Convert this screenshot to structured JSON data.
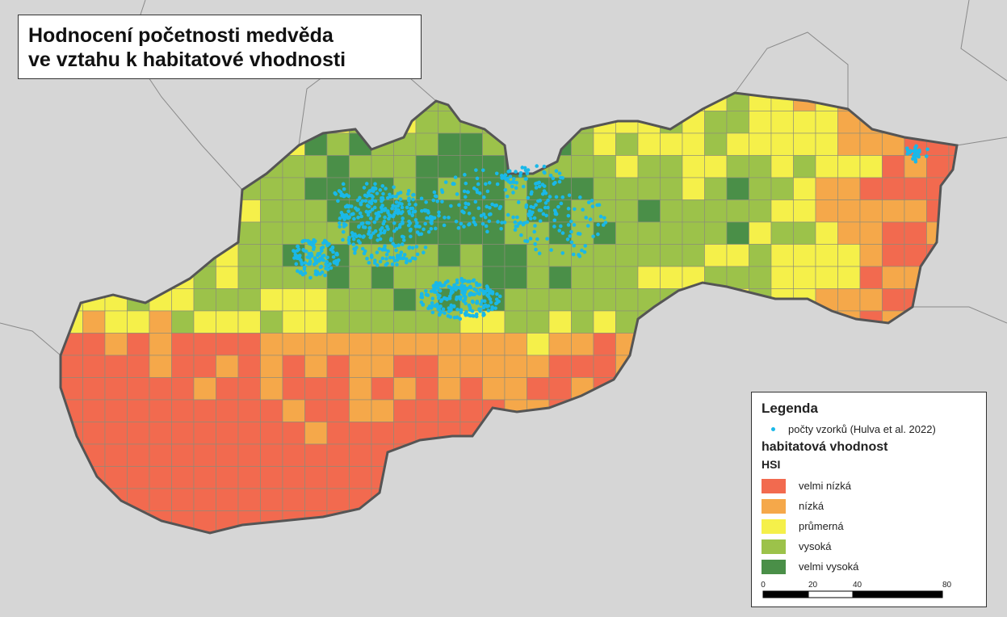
{
  "title": {
    "lines": [
      "Hodnocení početnosti medvěda",
      "ve vztahu k habitatové vhodnosti"
    ]
  },
  "legend": {
    "title": "Legenda",
    "points": {
      "label": "počty vzorků (Hulva et al. 2022)",
      "color": "#1ab8e8"
    },
    "group_title": "habitatová vhodnost",
    "subgroup_title": "HSI",
    "classes": [
      {
        "label": "velmi nízká",
        "color": "#f26a4f"
      },
      {
        "label": "nízká",
        "color": "#f5a84a"
      },
      {
        "label": "průmerná",
        "color": "#f5f04a"
      },
      {
        "label": "vysoká",
        "color": "#9cc24a"
      },
      {
        "label": "velmi vysoká",
        "color": "#4a8f48"
      }
    ]
  },
  "scale_bar": {
    "labels": [
      "0",
      "20",
      "40",
      "80 km"
    ]
  }
}
